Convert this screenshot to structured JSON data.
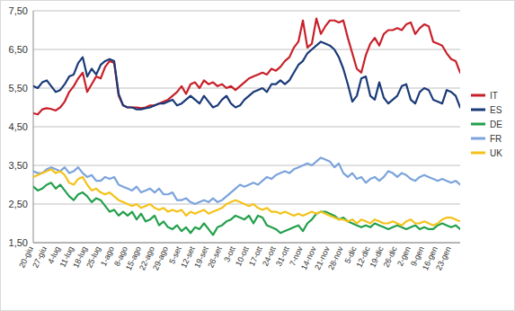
{
  "chart_data": {
    "type": "line",
    "categories": [
      "20-giu",
      null,
      null,
      "27-giu",
      null,
      null,
      "4-lug",
      null,
      null,
      "11-lug",
      null,
      null,
      "18-lug",
      null,
      null,
      "25-lug",
      null,
      null,
      "1-ago",
      null,
      null,
      "8-ago",
      null,
      null,
      "15-ago",
      null,
      null,
      "22-ago",
      null,
      null,
      "29-ago",
      null,
      null,
      "5-set",
      null,
      null,
      "12-set",
      null,
      null,
      "19-set",
      null,
      null,
      "26-set",
      null,
      null,
      "3-ott",
      null,
      null,
      "10-ott",
      null,
      null,
      "17-ott",
      null,
      null,
      "24-ott",
      null,
      null,
      "31-ott",
      null,
      null,
      "7-nov",
      null,
      null,
      "14-nov",
      null,
      null,
      "21-nov",
      null,
      null,
      "28-nov",
      null,
      null,
      "5-dic",
      null,
      null,
      "12-dic",
      null,
      null,
      "19-dic",
      null,
      null,
      "26-dic",
      null,
      null,
      "2-gen",
      null,
      null,
      "9-gen",
      null,
      null,
      "16-gen",
      null,
      null,
      "23-gen",
      null,
      null
    ],
    "series": [
      {
        "name": "IT",
        "color": "#c8202a",
        "values": [
          4.85,
          4.82,
          4.95,
          4.98,
          4.96,
          4.92,
          5.0,
          5.15,
          5.4,
          5.55,
          5.75,
          5.9,
          5.4,
          5.6,
          5.8,
          5.75,
          6.05,
          6.2,
          6.15,
          5.3,
          5.05,
          5.0,
          5.0,
          5.0,
          4.98,
          5.0,
          5.05,
          5.05,
          5.1,
          5.15,
          5.2,
          5.3,
          5.4,
          5.55,
          5.35,
          5.6,
          5.65,
          5.5,
          5.7,
          5.6,
          5.65,
          5.55,
          5.6,
          5.5,
          5.55,
          5.45,
          5.55,
          5.65,
          5.75,
          5.8,
          5.85,
          5.9,
          5.85,
          6.0,
          5.95,
          6.05,
          6.2,
          6.3,
          6.55,
          6.7,
          7.25,
          6.55,
          6.65,
          7.3,
          6.9,
          7.1,
          7.25,
          7.25,
          7.2,
          7.25,
          6.8,
          6.4,
          6.0,
          5.9,
          6.35,
          6.65,
          6.8,
          6.6,
          6.9,
          7.0,
          7.0,
          7.05,
          7.0,
          7.15,
          7.2,
          6.9,
          7.05,
          7.15,
          7.1,
          6.7,
          6.65,
          6.6,
          6.4,
          6.25,
          6.2,
          5.9
        ]
      },
      {
        "name": "ES",
        "color": "#1a3a78",
        "values": [
          5.55,
          5.5,
          5.65,
          5.7,
          5.55,
          5.4,
          5.45,
          5.6,
          5.8,
          5.85,
          6.15,
          6.3,
          5.8,
          6.0,
          5.85,
          6.1,
          6.2,
          6.25,
          6.2,
          5.35,
          5.05,
          5.0,
          5.0,
          4.95,
          4.95,
          4.98,
          5.0,
          5.05,
          5.1,
          5.1,
          5.15,
          5.2,
          5.05,
          5.1,
          5.2,
          5.3,
          5.2,
          5.1,
          5.3,
          5.15,
          5.0,
          5.05,
          5.2,
          5.3,
          5.1,
          5.0,
          5.05,
          5.2,
          5.3,
          5.4,
          5.45,
          5.5,
          5.4,
          5.6,
          5.6,
          5.7,
          5.6,
          5.7,
          5.9,
          6.1,
          6.2,
          6.4,
          6.5,
          6.6,
          6.7,
          6.65,
          6.6,
          6.5,
          6.3,
          6.0,
          5.6,
          5.15,
          5.3,
          5.75,
          5.8,
          5.3,
          5.2,
          5.65,
          5.25,
          5.1,
          5.2,
          5.3,
          5.55,
          5.6,
          5.2,
          5.1,
          5.4,
          5.5,
          5.45,
          5.2,
          5.15,
          5.1,
          5.45,
          5.4,
          5.3,
          5.0
        ]
      },
      {
        "name": "DE",
        "color": "#22a04b",
        "values": [
          2.95,
          2.85,
          2.9,
          3.0,
          3.05,
          2.9,
          3.0,
          2.85,
          2.7,
          2.6,
          2.75,
          2.8,
          2.7,
          2.55,
          2.65,
          2.6,
          2.45,
          2.3,
          2.35,
          2.2,
          2.3,
          2.2,
          2.3,
          2.1,
          2.25,
          2.05,
          2.1,
          2.2,
          1.95,
          2.05,
          1.9,
          1.85,
          1.95,
          1.8,
          1.9,
          1.75,
          1.9,
          1.85,
          2.0,
          1.85,
          1.7,
          1.9,
          1.95,
          2.05,
          2.1,
          2.2,
          2.15,
          2.1,
          2.2,
          2.0,
          2.2,
          2.15,
          1.95,
          1.9,
          1.85,
          1.75,
          1.8,
          1.85,
          1.9,
          1.95,
          1.8,
          2.0,
          2.1,
          2.25,
          2.3,
          2.3,
          2.25,
          2.2,
          2.1,
          2.15,
          2.05,
          2.0,
          1.95,
          1.9,
          1.95,
          1.9,
          2.0,
          1.95,
          1.9,
          1.85,
          1.9,
          1.95,
          1.9,
          1.85,
          1.9,
          1.95,
          1.85,
          1.9,
          1.85,
          1.85,
          1.95,
          2.0,
          1.95,
          1.9,
          1.95,
          1.85
        ]
      },
      {
        "name": "FR",
        "color": "#7ba3dc",
        "values": [
          3.35,
          3.3,
          3.3,
          3.4,
          3.45,
          3.4,
          3.35,
          3.45,
          3.3,
          3.35,
          3.45,
          3.3,
          3.2,
          3.25,
          3.1,
          3.1,
          3.2,
          3.15,
          3.2,
          3.0,
          2.95,
          2.9,
          2.85,
          2.95,
          2.8,
          2.85,
          2.9,
          2.8,
          2.9,
          2.75,
          2.75,
          2.8,
          2.6,
          2.6,
          2.65,
          2.55,
          2.5,
          2.55,
          2.6,
          2.55,
          2.65,
          2.55,
          2.6,
          2.7,
          2.8,
          2.9,
          3.0,
          2.95,
          3.0,
          3.05,
          3.0,
          3.1,
          3.2,
          3.15,
          3.25,
          3.3,
          3.35,
          3.3,
          3.4,
          3.45,
          3.5,
          3.55,
          3.5,
          3.6,
          3.7,
          3.65,
          3.6,
          3.45,
          3.55,
          3.3,
          3.2,
          3.3,
          3.15,
          3.2,
          3.05,
          3.15,
          3.2,
          3.1,
          3.2,
          3.35,
          3.3,
          3.2,
          3.3,
          3.25,
          3.15,
          3.1,
          3.2,
          3.25,
          3.2,
          3.15,
          3.1,
          3.15,
          3.1,
          3.05,
          3.1,
          3.0
        ]
      },
      {
        "name": "UK",
        "color": "#f4c21a",
        "values": [
          3.2,
          3.25,
          3.3,
          3.35,
          3.4,
          3.3,
          3.35,
          3.25,
          3.05,
          3.0,
          3.15,
          3.2,
          3.0,
          2.85,
          2.9,
          2.8,
          2.75,
          2.8,
          2.7,
          2.6,
          2.55,
          2.5,
          2.45,
          2.5,
          2.4,
          2.45,
          2.5,
          2.4,
          2.35,
          2.4,
          2.3,
          2.35,
          2.3,
          2.35,
          2.2,
          2.3,
          2.25,
          2.3,
          2.35,
          2.25,
          2.3,
          2.35,
          2.4,
          2.5,
          2.55,
          2.6,
          2.55,
          2.5,
          2.45,
          2.5,
          2.4,
          2.35,
          2.4,
          2.3,
          2.3,
          2.25,
          2.3,
          2.25,
          2.2,
          2.25,
          2.2,
          2.25,
          2.3,
          2.25,
          2.3,
          2.25,
          2.2,
          2.15,
          2.1,
          2.1,
          2.05,
          2.1,
          2.0,
          2.1,
          2.05,
          2.0,
          2.1,
          2.05,
          2.0,
          2.0,
          2.05,
          2.0,
          1.95,
          2.05,
          2.1,
          2.0,
          2.0,
          2.05,
          2.0,
          1.95,
          2.0,
          2.1,
          2.15,
          2.15,
          2.1,
          2.05
        ]
      }
    ],
    "ylim": [
      1.5,
      7.5
    ],
    "yticks": [
      {
        "value": 1.5,
        "label": "1,50"
      },
      {
        "value": 2.5,
        "label": "2,50"
      },
      {
        "value": 3.5,
        "label": "3,50"
      },
      {
        "value": 4.5,
        "label": "4,50"
      },
      {
        "value": 5.5,
        "label": "5,50"
      },
      {
        "value": 6.5,
        "label": "6,50"
      },
      {
        "value": 7.5,
        "label": "7,50"
      }
    ],
    "grid": true,
    "legend": "right"
  }
}
